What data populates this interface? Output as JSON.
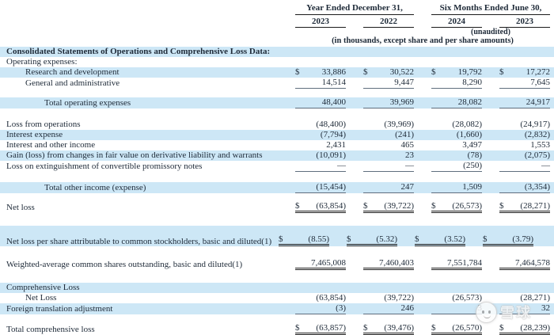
{
  "header": {
    "group1": "Year Ended December 31,",
    "group2": "Six Months Ended June 30,",
    "years": [
      "2023",
      "2022",
      "2024",
      "2023"
    ],
    "unaudited": "(unaudited)",
    "note": "(in thousands, except share and per share amounts)"
  },
  "colors": {
    "highlight": "#cde7f6",
    "text": "#1e2a38",
    "rule": "#5f6e7e",
    "rule_strong": "#1f1f1f"
  },
  "watermark": {
    "text": "雪球"
  },
  "rows": [
    {
      "label": "Consolidated Statements of Operations and Comprehensive Loss Data:",
      "indent": 0,
      "bold": true,
      "highlight": true
    },
    {
      "label": "Operating expenses:",
      "indent": 0
    },
    {
      "label": "Research and development",
      "indent": 1,
      "highlight": true,
      "dollar": true,
      "values": [
        "33,886",
        "30,522",
        "19,792",
        "17,272"
      ]
    },
    {
      "label": "General and administrative",
      "indent": 1,
      "values": [
        "14,514",
        "9,447",
        "8,290",
        "7,645"
      ],
      "underline": "single"
    },
    {
      "spacer": 11
    },
    {
      "label": "Total operating expenses",
      "indent": 2,
      "highlight": true,
      "values": [
        "48,400",
        "39,969",
        "28,082",
        "24,917"
      ],
      "underline": "single"
    },
    {
      "spacer": 14
    },
    {
      "label": "Loss from operations",
      "indent": 0,
      "values": [
        "(48,400)",
        "(39,969)",
        "(28,082)",
        "(24,917)"
      ]
    },
    {
      "label": "Interest expense",
      "indent": 0,
      "highlight": true,
      "values": [
        "(7,794)",
        "(241)",
        "(1,660)",
        "(2,832)"
      ]
    },
    {
      "label": "Interest and other income",
      "indent": 0,
      "values": [
        "2,431",
        "465",
        "3,497",
        "1,553"
      ]
    },
    {
      "label": "Gain (loss) from changes in fair value on derivative liability and warrants",
      "indent": 0,
      "highlight": true,
      "values": [
        "(10,091)",
        "23",
        "(78)",
        "(2,075)"
      ]
    },
    {
      "label": "Loss on extinguishment of convertible promissory notes",
      "indent": 0,
      "values": [
        "—",
        "—",
        "(250)",
        "—"
      ],
      "underline": "single"
    },
    {
      "spacer": 13
    },
    {
      "label": "Total other income (expense)",
      "indent": 2,
      "highlight": true,
      "values": [
        "(15,454)",
        "247",
        "1,509",
        "(3,354)"
      ],
      "underline": "single"
    },
    {
      "spacer": 10
    },
    {
      "label": "Net loss",
      "indent": 0,
      "dollar": true,
      "values": [
        "(63,854)",
        "(39,722)",
        "(26,573)",
        "(28,271)"
      ],
      "underline": "double"
    },
    {
      "spacer": 16
    },
    {
      "label": "Net loss per share attributable to common stockholders, basic and diluted(1)",
      "indent": 0,
      "highlight": true,
      "dollar": true,
      "wrap": true,
      "values": [
        "(8.55)",
        "(5.32)",
        "(3.52)",
        "(3.79)"
      ],
      "underline": "double"
    },
    {
      "spacer": 15
    },
    {
      "label": "Weighted-average common shares outstanding, basic and diluted(1)",
      "indent": 0,
      "values": [
        "7,465,008",
        "7,460,403",
        "7,551,784",
        "7,464,578"
      ],
      "underline": "double"
    },
    {
      "spacer": 16
    },
    {
      "label": "Comprehensive Loss",
      "indent": 0,
      "highlight": true
    },
    {
      "label": "Net Loss",
      "indent": 1,
      "values": [
        "(63,854)",
        "(39,722)",
        "(26,573)",
        "(28,271)"
      ]
    },
    {
      "label": "Foreign translation adjustment",
      "indent": 0,
      "highlight": true,
      "values": [
        "(3)",
        "246",
        "3",
        "32"
      ],
      "underline": "single"
    },
    {
      "spacer": 11
    },
    {
      "label": "Total comprehensive loss",
      "indent": 0,
      "dollar": true,
      "values": [
        "(63,857)",
        "(39,476)",
        "(26,570)",
        "(28,239)"
      ],
      "underline": "double"
    }
  ]
}
